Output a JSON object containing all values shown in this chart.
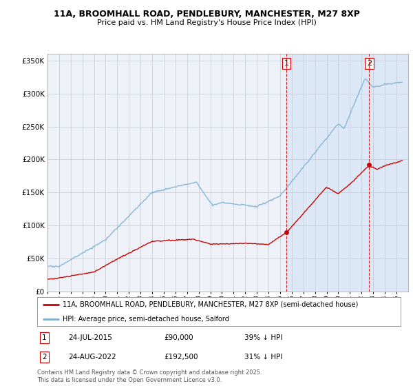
{
  "title": "11A, BROOMHALL ROAD, PENDLEBURY, MANCHESTER, M27 8XP",
  "subtitle": "Price paid vs. HM Land Registry's House Price Index (HPI)",
  "red_label": "11A, BROOMHALL ROAD, PENDLEBURY, MANCHESTER, M27 8XP (semi-detached house)",
  "blue_label": "HPI: Average price, semi-detached house, Salford",
  "footnote": "Contains HM Land Registry data © Crown copyright and database right 2025.\nThis data is licensed under the Open Government Licence v3.0.",
  "transaction1": {
    "label": "1",
    "date": "24-JUL-2015",
    "price": "£90,000",
    "note": "39% ↓ HPI"
  },
  "transaction2": {
    "label": "2",
    "date": "24-AUG-2022",
    "price": "£192,500",
    "note": "31% ↓ HPI"
  },
  "ylim": [
    0,
    360000
  ],
  "yticks": [
    0,
    50000,
    100000,
    150000,
    200000,
    250000,
    300000,
    350000
  ],
  "xlim": [
    1995,
    2026
  ],
  "red_color": "#cc0000",
  "blue_color": "#7bafd4",
  "vline_color": "#cc0000",
  "grid_color": "#cccccc",
  "bg_color": "#ffffff",
  "plot_bg": "#eef2f8",
  "shade_color": "#ddeeff",
  "annotation_bg": "#fff5f5",
  "t1_x": 2015.54,
  "t2_x": 2022.65,
  "t1_y": 90000,
  "t2_y": 192500
}
